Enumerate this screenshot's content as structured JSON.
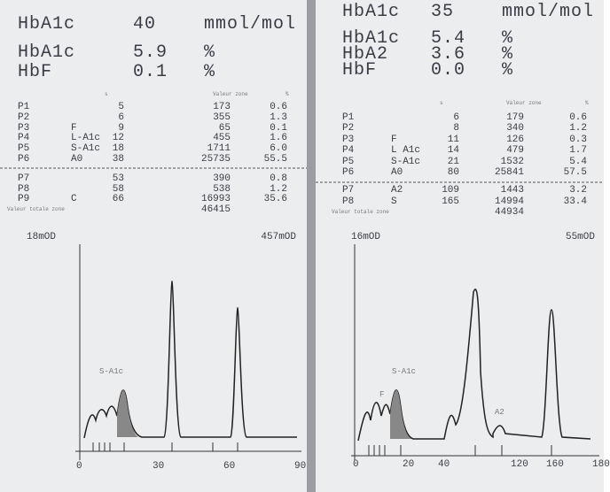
{
  "panels": [
    {
      "header": [
        {
          "label": "HbA1c",
          "value": "40",
          "unit": "mmol/mol"
        },
        {
          "label": "HbA1c",
          "value": "5.9",
          "unit": "%"
        },
        {
          "label": "HbF",
          "value": "0.1",
          "unit": "%"
        }
      ],
      "col_headers": [
        "s",
        "Valeur zone",
        "%"
      ],
      "rows": [
        [
          "P1",
          null,
          "5",
          "173",
          "0.6"
        ],
        [
          "P2",
          null,
          "6",
          "355",
          "1.3"
        ],
        [
          "P3",
          "F",
          "9",
          "65",
          "0.1"
        ],
        [
          "P4",
          "L-A1c",
          "12",
          "455",
          "1.6"
        ],
        [
          "P5",
          "S-A1c",
          "18",
          "1711",
          "6.0"
        ],
        [
          "P6",
          "A0",
          "38",
          "25735",
          "55.5"
        ],
        [
          "P7",
          null,
          "53",
          "390",
          "0.8"
        ],
        [
          "P8",
          null,
          "58",
          "538",
          "1.2"
        ],
        [
          "P9",
          "C",
          "66",
          "16993",
          "35.6"
        ]
      ],
      "total_label": "Valeur totale zone",
      "total_value": "46415",
      "scale_left": "18mOD",
      "scale_right": "457mOD",
      "peak_labels": [
        "S-A1c"
      ],
      "axis_ticks": [
        "0",
        "30",
        "60",
        "90"
      ]
    },
    {
      "header": [
        {
          "label": "HbA1c",
          "value": "35",
          "unit": "mmol/mol"
        },
        {
          "label": "HbA1c",
          "value": "5.4",
          "unit": "%"
        },
        {
          "label": "HbA2",
          "value": "3.6",
          "unit": "%"
        },
        {
          "label": "HbF",
          "value": "0.0",
          "unit": "%"
        }
      ],
      "col_headers": [
        "s",
        "Valeur zone",
        "%"
      ],
      "rows": [
        [
          "P1",
          null,
          "6",
          "179",
          "0.6"
        ],
        [
          "P2",
          null,
          "8",
          "340",
          "1.2"
        ],
        [
          "P3",
          "F",
          "11",
          "126",
          "0.3"
        ],
        [
          "P4",
          "L A1c",
          "14",
          "479",
          "1.7"
        ],
        [
          "P5",
          "S-A1c",
          "21",
          "1532",
          "5.4"
        ],
        [
          "P6",
          "A0",
          "80",
          "25841",
          "57.5"
        ],
        [
          "P7",
          "A2",
          "109",
          "1443",
          "3.2"
        ],
        [
          "P8",
          "S",
          "165",
          "14994",
          "33.4"
        ]
      ],
      "total_label": "Valeur totale zone",
      "total_value": "44934",
      "scale_left": "16mOD",
      "scale_right": "55mOD",
      "peak_labels": [
        "S-A1c",
        "F",
        "A2"
      ],
      "axis_ticks": [
        "0",
        "20",
        "40",
        "120",
        "160",
        "180"
      ]
    }
  ]
}
